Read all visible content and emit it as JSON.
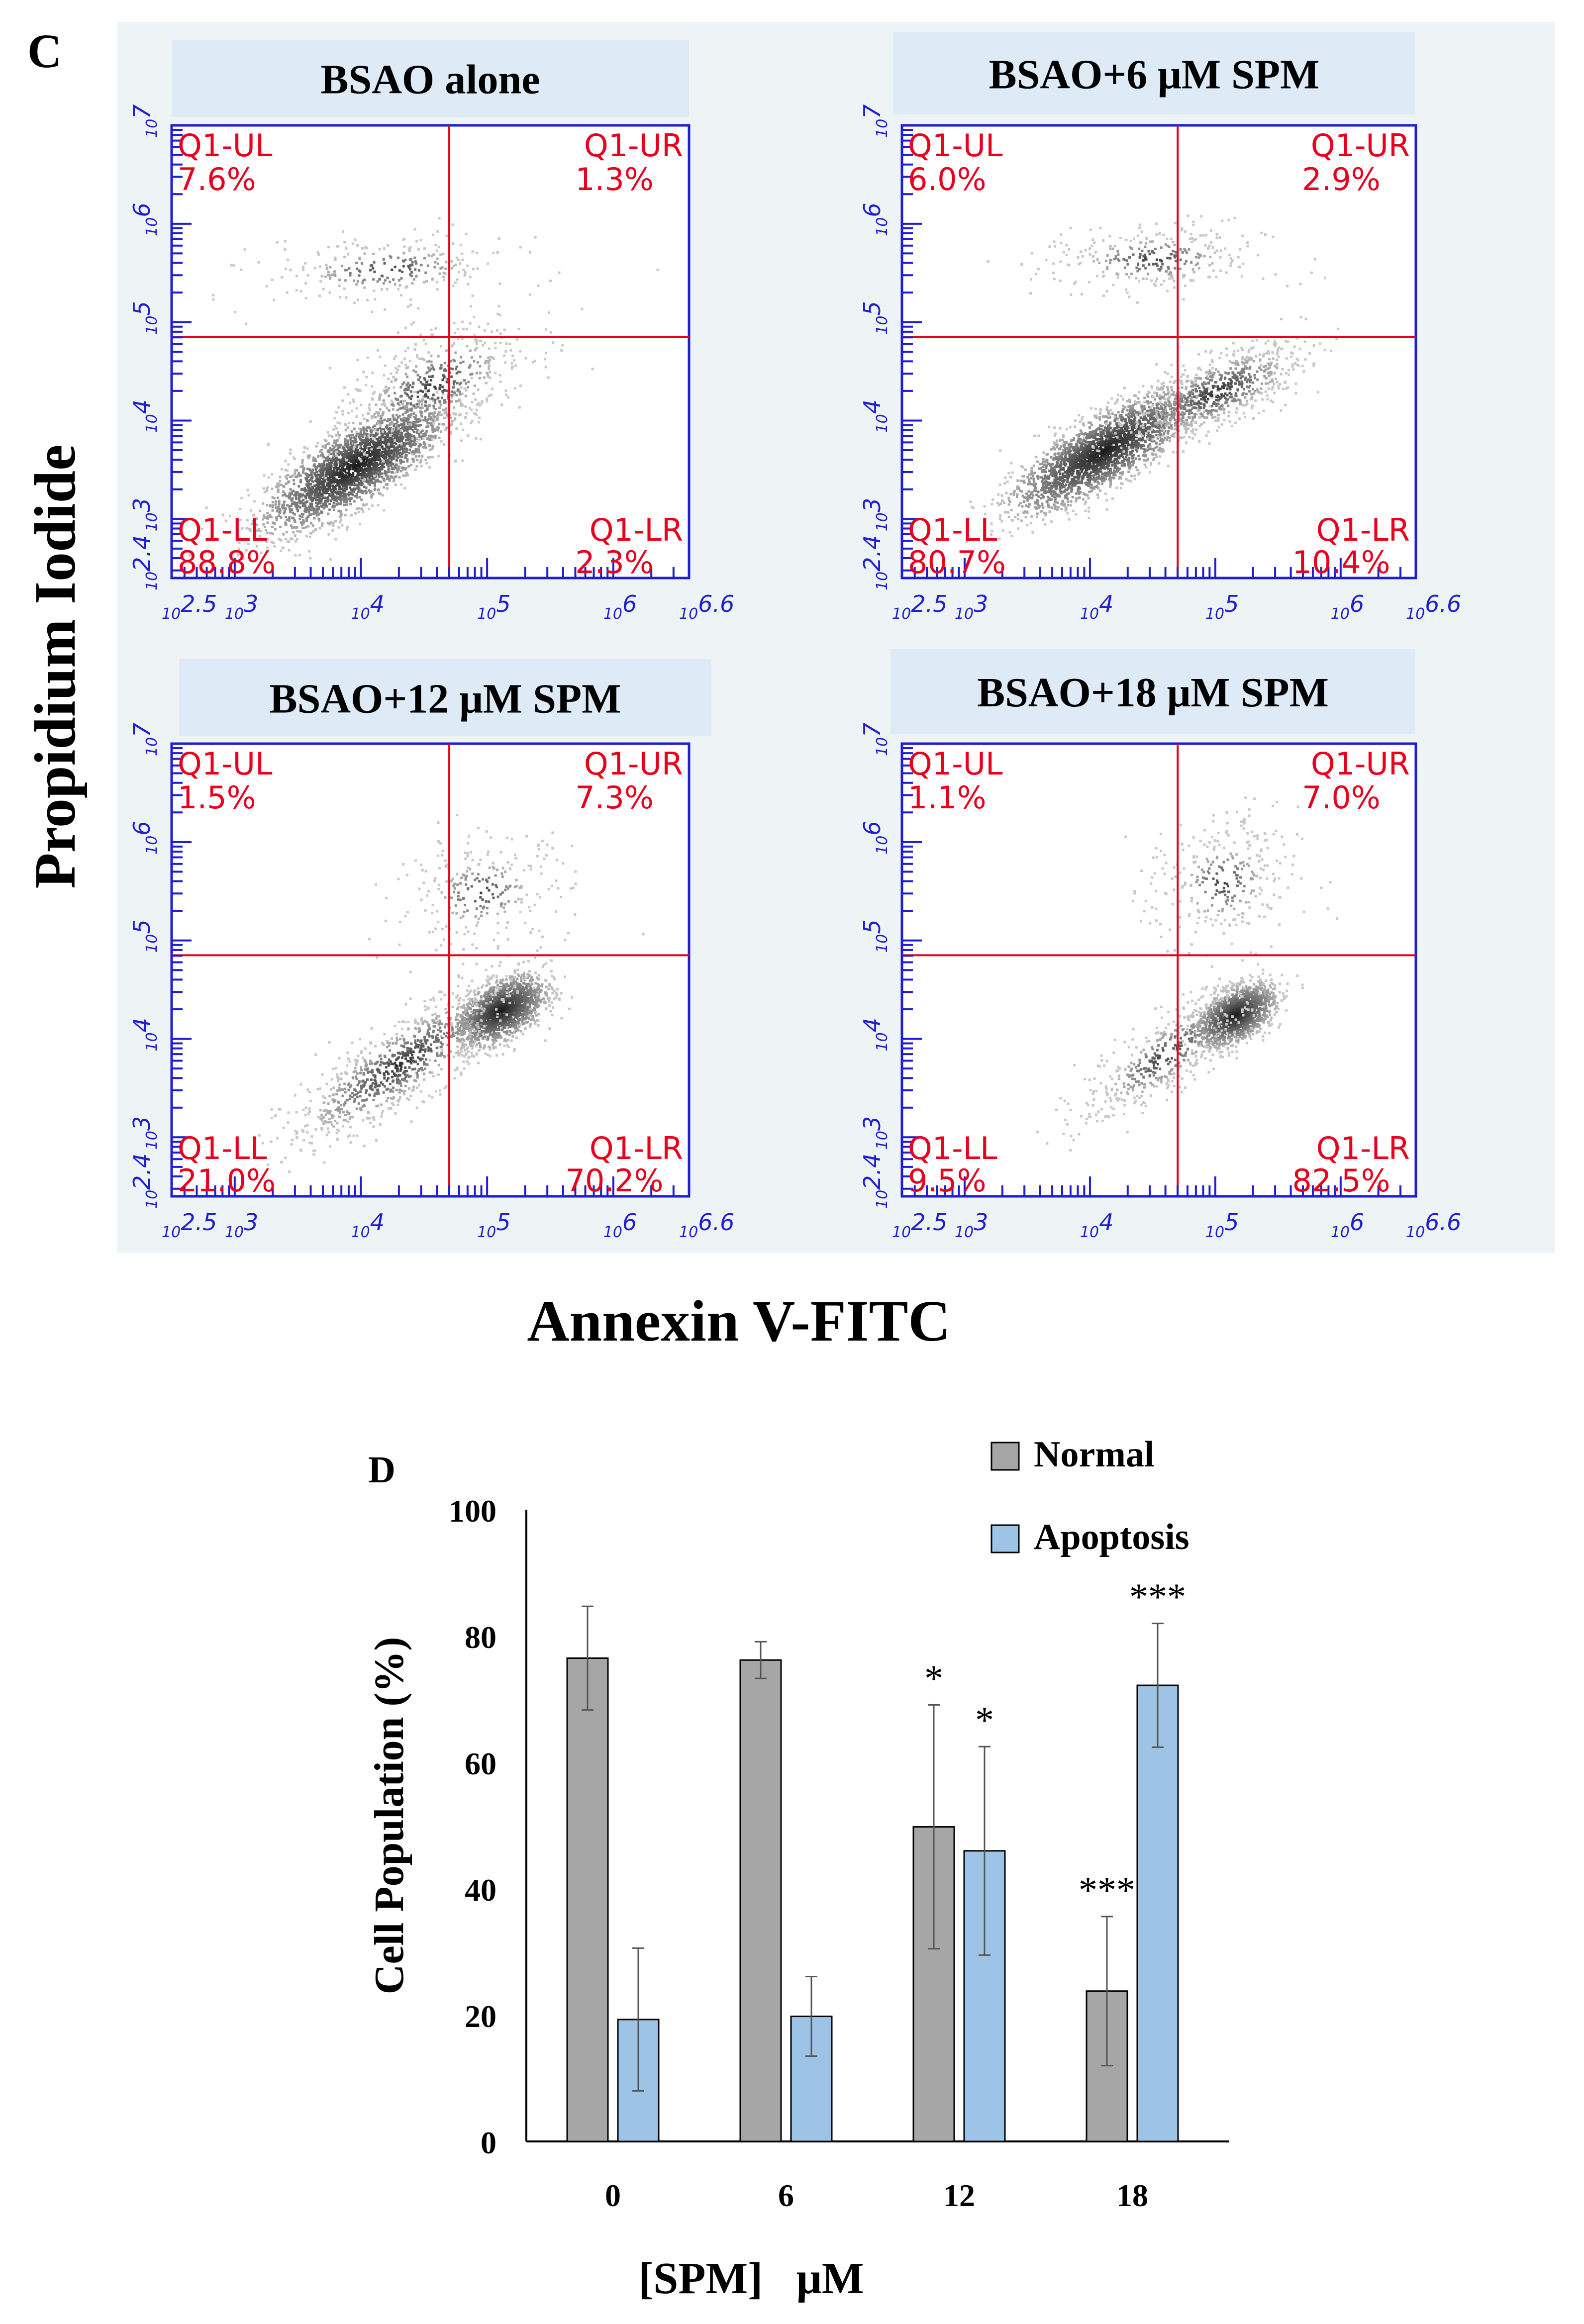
{
  "panel_c": {
    "letter": "C",
    "y_axis_title": "Propidium Iodide",
    "x_axis_title": "Annexin V-FITC",
    "x_ticks": [
      "10^2.5",
      "10^3",
      "10^4",
      "10^5",
      "10^6",
      "10^6.6"
    ],
    "y_ticks": [
      "10^2.4",
      "10^3",
      "10^4",
      "10^5",
      "10^6",
      "10^7"
    ],
    "plots": [
      {
        "title": "BSAO alone",
        "x_cut": 4.7,
        "y_cut": 4.85,
        "quadrants": [
          {
            "name": "Q1-UL",
            "value": "7.6%"
          },
          {
            "name": "Q1-UR",
            "value": "1.3%"
          },
          {
            "name": "Q1-LL",
            "value": "88.8%"
          },
          {
            "name": "Q1-LR",
            "value": "2.3%"
          }
        ]
      },
      {
        "title": "BSAO+6 μM SPM",
        "x_cut": 4.7,
        "y_cut": 4.85,
        "quadrants": [
          {
            "name": "Q1-UL",
            "value": "6.0%"
          },
          {
            "name": "Q1-UR",
            "value": "2.9%"
          },
          {
            "name": "Q1-LL",
            "value": "80.7%"
          },
          {
            "name": "Q1-LR",
            "value": "10.4%"
          }
        ]
      },
      {
        "title": "BSAO+12 μM SPM",
        "x_cut": 4.7,
        "y_cut": 4.85,
        "quadrants": [
          {
            "name": "Q1-UL",
            "value": "1.5%"
          },
          {
            "name": "Q1-UR",
            "value": "7.3%"
          },
          {
            "name": "Q1-LL",
            "value": "21.0%"
          },
          {
            "name": "Q1-LR",
            "value": "70.2%"
          }
        ]
      },
      {
        "title": "BSAO+18 μM SPM",
        "x_cut": 4.7,
        "y_cut": 4.85,
        "quadrants": [
          {
            "name": "Q1-UL",
            "value": "1.1%"
          },
          {
            "name": "Q1-UR",
            "value": "7.0%"
          },
          {
            "name": "Q1-LL",
            "value": "9.5%"
          },
          {
            "name": "Q1-LR",
            "value": "82.5%"
          }
        ]
      }
    ]
  },
  "chart_data": {
    "type": "bar",
    "panel_letter": "D",
    "categories": [
      "0",
      "6",
      "12",
      "18"
    ],
    "series": [
      {
        "name": "Normal",
        "color": "#a6a6a6",
        "values": [
          76.5,
          76.2,
          49.8,
          23.8
        ],
        "errors": [
          8.2,
          2.9,
          19.3,
          11.8
        ],
        "significance": [
          "",
          "",
          "*",
          "***"
        ]
      },
      {
        "name": "Apoptosis",
        "color": "#9dc3e6",
        "values": [
          19.3,
          19.8,
          46.0,
          72.2
        ],
        "errors": [
          11.3,
          6.3,
          16.5,
          9.8
        ],
        "significance": [
          "",
          "",
          "*",
          "***"
        ]
      }
    ],
    "ylabel": "Cell Population (%)",
    "xlabel": "[SPM]   μM",
    "ylim": [
      0,
      100
    ],
    "yticks": [
      0,
      20,
      40,
      60,
      80,
      100
    ]
  }
}
